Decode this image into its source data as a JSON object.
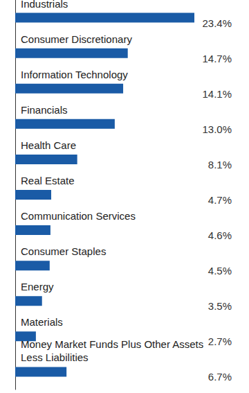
{
  "chart_data": {
    "type": "bar",
    "orientation": "horizontal",
    "categories": [
      "Industrials",
      "Consumer Discretionary",
      "Information Technology",
      "Financials",
      "Health Care",
      "Real Estate",
      "Communication Services",
      "Consumer Staples",
      "Energy",
      "Materials",
      "Money Market Funds Plus Other Assets\nLess Liabilities"
    ],
    "values": [
      23.4,
      14.7,
      14.1,
      13.0,
      8.1,
      4.7,
      4.6,
      4.5,
      3.5,
      2.7,
      6.7
    ],
    "value_labels": [
      "23.4%",
      "14.7%",
      "14.1%",
      "13.0%",
      "8.1%",
      "4.7%",
      "4.6%",
      "4.5%",
      "3.5%",
      "2.7%",
      "6.7%"
    ],
    "color": "#1a5ba6",
    "xlim": [
      0,
      23.4
    ],
    "data_labels": true,
    "tick_labels": false,
    "grid": false
  }
}
